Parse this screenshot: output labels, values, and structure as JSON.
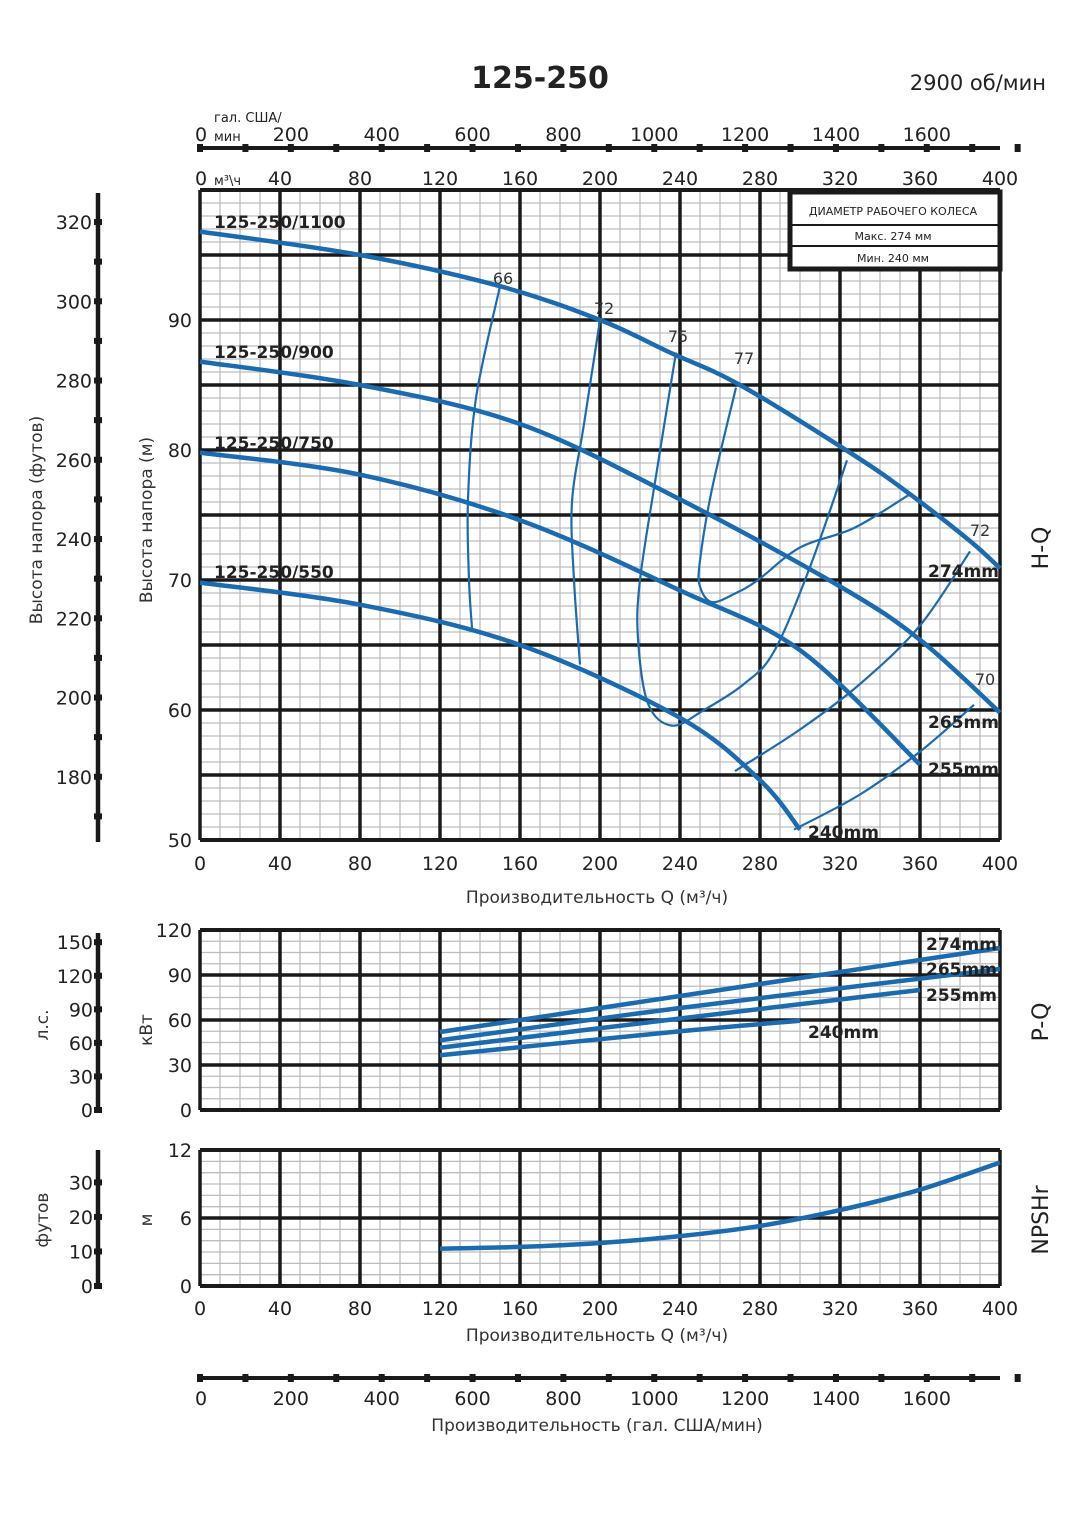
{
  "header": {
    "title": "125-250",
    "speed": "2900 об/мин"
  },
  "top_axes": {
    "gpm_unit_line1": "гал. США/",
    "gpm_unit_line2": "мин",
    "gpm_ticks": [
      0,
      200,
      400,
      600,
      800,
      1000,
      1200,
      1400,
      1600
    ],
    "flow_unit": "м³\\ч",
    "flow_ticks": [
      0,
      40,
      80,
      120,
      160,
      200,
      240,
      280,
      320,
      360,
      400
    ]
  },
  "bottom_axis": {
    "gpm_ticks": [
      0,
      200,
      400,
      600,
      800,
      1000,
      1200,
      1400,
      1600
    ],
    "label": "Производительность (гал. США/мин)"
  },
  "colors": {
    "curve": "#1b6bb0",
    "grid_major": "#1a1a1a",
    "grid_minor": "#bdbdbd"
  },
  "chart_data": [
    {
      "type": "line",
      "panel_label": "H-Q",
      "xlabel": "Производительность Q (м³/ч)",
      "ylabel": "Высота напора (м)",
      "y2label": "Высота напора (футов)",
      "xlim": [
        0,
        400
      ],
      "ylim": [
        50,
        100
      ],
      "x_ticks": [
        0,
        40,
        80,
        120,
        160,
        200,
        240,
        280,
        320,
        360,
        400
      ],
      "y_ticks": [
        50,
        60,
        70,
        80,
        90
      ],
      "y2_ticks": [
        180,
        200,
        220,
        240,
        260,
        280,
        300,
        320
      ],
      "grid": true,
      "legend_box": {
        "title": "ДИАМЕТР РАБОЧЕГО КОЛЕСА",
        "max": "Макс. 274 мм",
        "min": "Мин. 240 мм"
      },
      "series": [
        {
          "name": "125-250/1100",
          "diameter": "274mm",
          "points": [
            [
              0,
              96.8
            ],
            [
              80,
              95
            ],
            [
              150,
              92.6
            ],
            [
              200,
              90
            ],
            [
              235,
              87.5
            ],
            [
              270,
              85
            ],
            [
              327,
              79.6
            ],
            [
              355,
              76.6
            ],
            [
              385,
              73
            ],
            [
              400,
              70.9
            ]
          ]
        },
        {
          "name": "125-250/900",
          "diameter": "265mm",
          "points": [
            [
              0,
              86.8
            ],
            [
              80,
              85
            ],
            [
              160,
              82
            ],
            [
              240,
              76.2
            ],
            [
              320,
              69.5
            ],
            [
              360,
              65.4
            ],
            [
              400,
              59.8
            ]
          ]
        },
        {
          "name": "125-250/750",
          "diameter": "255mm",
          "points": [
            [
              0,
              79.8
            ],
            [
              80,
              78.1
            ],
            [
              160,
              74.6
            ],
            [
              240,
              69.2
            ],
            [
              300,
              64.6
            ],
            [
              360,
              55.8
            ]
          ]
        },
        {
          "name": "125-250/550",
          "diameter": "240mm",
          "points": [
            [
              0,
              69.8
            ],
            [
              80,
              68.1
            ],
            [
              160,
              65
            ],
            [
              240,
              59.4
            ],
            [
              280,
              54.6
            ],
            [
              300,
              50.8
            ]
          ]
        }
      ],
      "efficiency_curves": [
        {
          "label": "66",
          "points": [
            [
              150,
              92.6
            ],
            [
              138,
              84
            ],
            [
              134,
              76.2
            ],
            [
              134.5,
              70
            ],
            [
              136,
              66.3
            ]
          ]
        },
        {
          "label": "72",
          "points": [
            [
              200,
              90
            ],
            [
              192,
              82
            ],
            [
              186,
              76
            ],
            [
              187,
              70
            ],
            [
              190,
              63.5
            ]
          ]
        },
        {
          "label": "75",
          "points": [
            [
              238,
              87.5
            ],
            [
              228,
              78
            ],
            [
              220,
              70
            ],
            [
              219,
              65.5
            ],
            [
              224,
              60.5
            ],
            [
              236,
              58.8
            ],
            [
              252,
              60
            ],
            [
              272,
              62
            ],
            [
              287,
              64.5
            ],
            [
              305,
              71
            ],
            [
              323.5,
              79.2
            ]
          ]
        },
        {
          "label": "77",
          "points": [
            [
              268,
              84.8
            ],
            [
              256,
              77
            ],
            [
              250,
              71.5
            ],
            [
              250,
              69.5
            ],
            [
              256,
              68.3
            ],
            [
              268,
              69
            ],
            [
              279,
              70
            ],
            [
              300,
              72.5
            ],
            [
              327,
              74
            ],
            [
              355,
              76.6
            ]
          ]
        },
        {
          "label": "72",
          "points": [
            [
              267.5,
              55.3
            ],
            [
              300,
              58.5
            ],
            [
              330,
              62
            ],
            [
              360,
              66.5
            ],
            [
              385,
              72.2
            ]
          ]
        },
        {
          "label": "70",
          "points": [
            [
              297,
              50.8
            ],
            [
              330,
              53.5
            ],
            [
              360,
              56.8
            ],
            [
              387,
              60.4
            ]
          ]
        }
      ]
    },
    {
      "type": "line",
      "panel_label": "P-Q",
      "ylabel": "кВт",
      "y2label": "л.с.",
      "xlim": [
        0,
        400
      ],
      "ylim": [
        0,
        120
      ],
      "y_ticks": [
        0,
        30,
        60,
        90,
        120
      ],
      "y2_ticks": [
        0,
        30,
        60,
        90,
        120,
        150
      ],
      "grid": true,
      "series": [
        {
          "name": "274mm",
          "points": [
            [
              120,
              52
            ],
            [
              240,
              76
            ],
            [
              400,
              108
            ]
          ]
        },
        {
          "name": "265mm",
          "points": [
            [
              120,
              46.5
            ],
            [
              240,
              68
            ],
            [
              400,
              94
            ]
          ]
        },
        {
          "name": "255mm",
          "points": [
            [
              120,
              41.5
            ],
            [
              240,
              61
            ],
            [
              360,
              80
            ]
          ]
        },
        {
          "name": "240mm",
          "points": [
            [
              120,
              36.5
            ],
            [
              240,
              52.5
            ],
            [
              300,
              59.5
            ]
          ]
        }
      ]
    },
    {
      "type": "line",
      "panel_label": "NPSHr",
      "xlabel": "Производительность Q (м³/ч)",
      "ylabel": "м",
      "y2label": "футов",
      "xlim": [
        0,
        400
      ],
      "ylim": [
        0,
        12
      ],
      "x_ticks": [
        0,
        40,
        80,
        120,
        160,
        200,
        240,
        280,
        320,
        360,
        400
      ],
      "y_ticks": [
        0,
        6,
        12
      ],
      "y2_ticks": [
        0,
        10,
        20,
        30
      ],
      "grid": true,
      "series": [
        {
          "points": [
            [
              120,
              3.3
            ],
            [
              160,
              3.45
            ],
            [
              200,
              3.8
            ],
            [
              240,
              4.4
            ],
            [
              280,
              5.3
            ],
            [
              320,
              6.7
            ],
            [
              360,
              8.5
            ],
            [
              400,
              10.9
            ]
          ]
        }
      ]
    }
  ]
}
